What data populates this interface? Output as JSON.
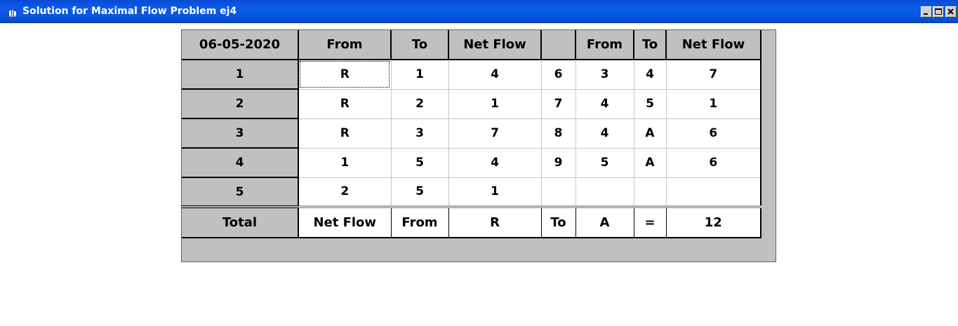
{
  "window": {
    "title": "Solution for Maximal Flow Problem ej4",
    "icon": "app-window-icon",
    "controls": {
      "minimize": "minimize-icon",
      "maximize": "maximize-icon",
      "close": "close-icon"
    }
  },
  "grid": {
    "headers": [
      "06-05-2020",
      "From",
      "To",
      "Net Flow",
      "",
      "From",
      "To",
      "Net Flow"
    ],
    "rows": [
      [
        "1",
        "R",
        "1",
        "4",
        "6",
        "3",
        "4",
        "7"
      ],
      [
        "2",
        "R",
        "2",
        "1",
        "7",
        "4",
        "5",
        "1"
      ],
      [
        "3",
        "R",
        "3",
        "7",
        "8",
        "4",
        "A",
        "6"
      ],
      [
        "4",
        "1",
        "5",
        "4",
        "9",
        "5",
        "A",
        "6"
      ],
      [
        "5",
        "2",
        "5",
        "1",
        "",
        "",
        "",
        ""
      ]
    ],
    "total_row": [
      "Total",
      "Net Flow",
      "From",
      "R",
      "To",
      "A",
      "=",
      "12"
    ]
  }
}
